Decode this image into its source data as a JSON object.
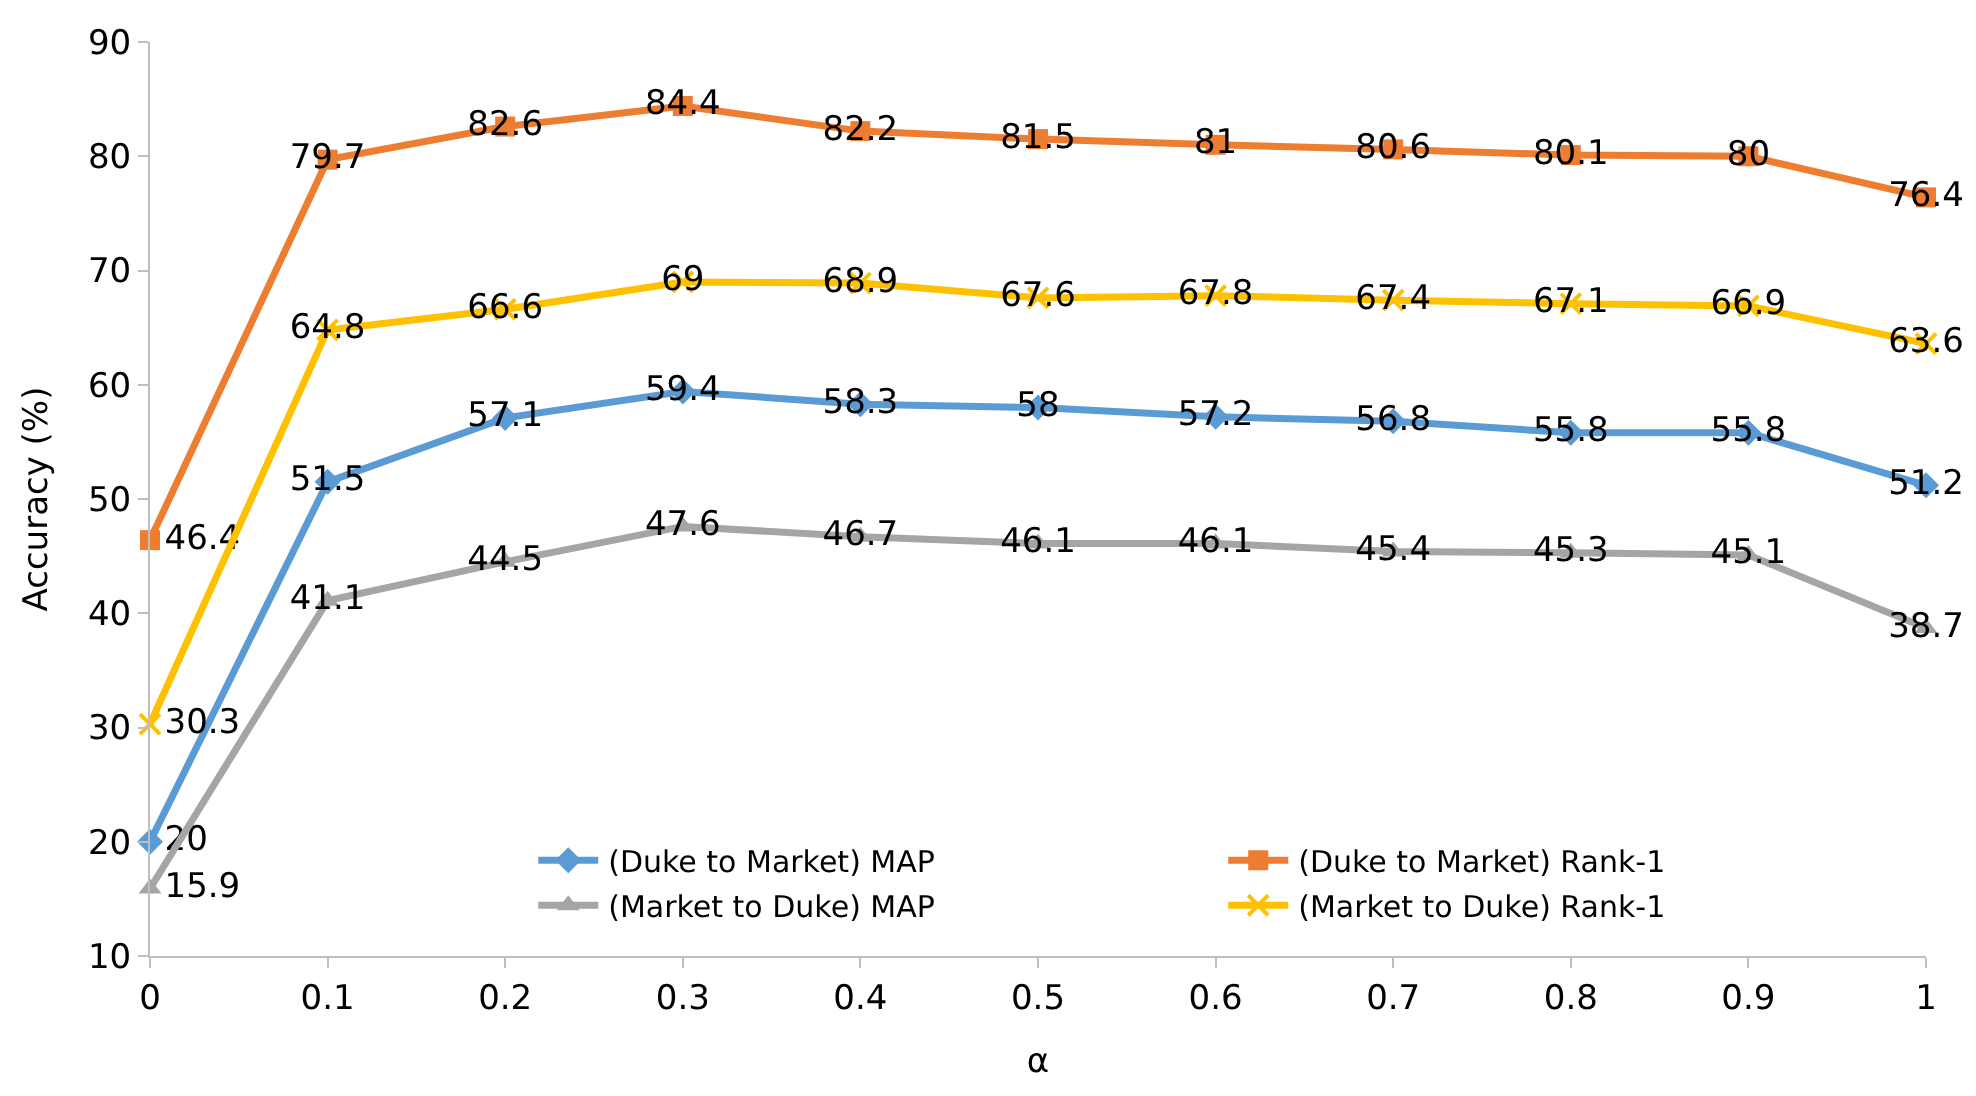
{
  "chart_data": {
    "type": "line",
    "xlabel": "α",
    "ylabel": "Accuracy (%)",
    "x": [
      0,
      0.1,
      0.2,
      0.3,
      0.4,
      0.5,
      0.6,
      0.7,
      0.8,
      0.9,
      1
    ],
    "xlim": [
      0,
      1
    ],
    "xticks": [
      0,
      0.1,
      0.2,
      0.3,
      0.4,
      0.5,
      0.6,
      0.7,
      0.8,
      0.9,
      1
    ],
    "ylim": [
      10,
      90
    ],
    "yticks": [
      10,
      20,
      30,
      40,
      50,
      60,
      70,
      80,
      90
    ],
    "legend": "bottom right",
    "data_labels": true,
    "line_style": "solid",
    "series": [
      {
        "name": "(Duke to Market) MAP",
        "color": "#5b9bd5",
        "marker": "diamond",
        "values": [
          20,
          51.5,
          57.1,
          59.4,
          58.3,
          58,
          57.2,
          56.8,
          55.8,
          55.8,
          51.2
        ]
      },
      {
        "name": "(Duke to Market) Rank-1",
        "color": "#ed7d31",
        "marker": "square",
        "values": [
          46.4,
          79.7,
          82.6,
          84.4,
          82.2,
          81.5,
          81,
          80.6,
          80.1,
          80,
          76.4
        ]
      },
      {
        "name": "(Market to Duke) MAP",
        "color": "#a5a5a5",
        "marker": "triangle",
        "values": [
          15.9,
          41.1,
          44.5,
          47.6,
          46.7,
          46.1,
          46.1,
          45.4,
          45.3,
          45.1,
          38.7
        ]
      },
      {
        "name": "(Market to Duke) Rank-1",
        "color": "#ffc000",
        "marker": "cross",
        "values": [
          30.3,
          64.8,
          66.6,
          69,
          68.9,
          67.6,
          67.8,
          67.4,
          67.1,
          66.9,
          63.6
        ]
      }
    ]
  }
}
